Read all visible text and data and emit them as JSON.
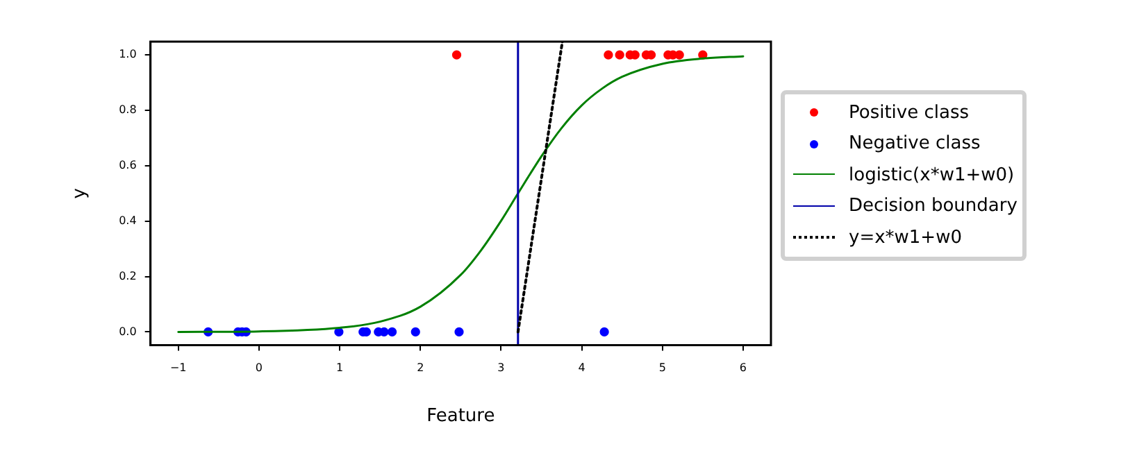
{
  "chart_data": {
    "type": "scatter",
    "xlabel": "Feature",
    "ylabel": "y",
    "xlim": [
      -1.345,
      6.345
    ],
    "ylim": [
      -0.048,
      1.048
    ],
    "xticks": [
      {
        "value": -1,
        "label": "−1"
      },
      0,
      1,
      2,
      3,
      4,
      5,
      6
    ],
    "yticks": [
      {
        "value": 0,
        "label": "0.0"
      },
      {
        "value": 0.2,
        "label": "0.2"
      },
      {
        "value": 0.4,
        "label": "0.4"
      },
      {
        "value": 0.6,
        "label": "0.6"
      },
      {
        "value": 0.8,
        "label": "0.8"
      },
      {
        "value": 1,
        "label": "1.0"
      }
    ],
    "grid": false,
    "legend": "right",
    "series": [
      {
        "name": "Positive class",
        "type": "scatter",
        "marker": "circle",
        "color": "#ff0000",
        "x": [
          2.45,
          4.33,
          4.47,
          4.6,
          4.66,
          4.8,
          4.86,
          5.07,
          5.13,
          5.21,
          5.5
        ],
        "values": [
          1,
          1,
          1,
          1,
          1,
          1,
          1,
          1,
          1,
          1,
          1
        ]
      },
      {
        "name": "Negative class",
        "type": "scatter",
        "marker": "circle",
        "color": "#0000ff",
        "x": [
          -0.63,
          -0.26,
          -0.21,
          -0.16,
          0.99,
          1.29,
          1.33,
          1.48,
          1.55,
          1.65,
          1.94,
          2.48,
          4.28
        ],
        "values": [
          0,
          0,
          0,
          0,
          0,
          0,
          0,
          0,
          0,
          0,
          0,
          0,
          0
        ]
      },
      {
        "name": "logistic(x*w1+w0)",
        "type": "line",
        "line_style": "solid",
        "color": "#008000",
        "x": [
          -1,
          0,
          1,
          1.5,
          2,
          2.5,
          2.75,
          3,
          3.21,
          3.5,
          3.75,
          4,
          4.25,
          4.5,
          5,
          5.5,
          6
        ],
        "values": [
          0,
          0.002,
          0.015,
          0.037,
          0.091,
          0.206,
          0.294,
          0.401,
          0.5,
          0.634,
          0.736,
          0.818,
          0.878,
          0.921,
          0.968,
          0.987,
          0.995
        ]
      },
      {
        "name": "Decision boundary",
        "type": "line",
        "line_style": "solid",
        "color": "#0000aa",
        "x": [
          3.21,
          3.21
        ],
        "values": [
          -0.048,
          1.048
        ]
      },
      {
        "name": "y=x*w1+w0",
        "type": "line",
        "line_style": "dotted",
        "color": "#000000",
        "x": [
          3.21,
          3.76
        ],
        "values": [
          0,
          1.048
        ]
      }
    ]
  }
}
